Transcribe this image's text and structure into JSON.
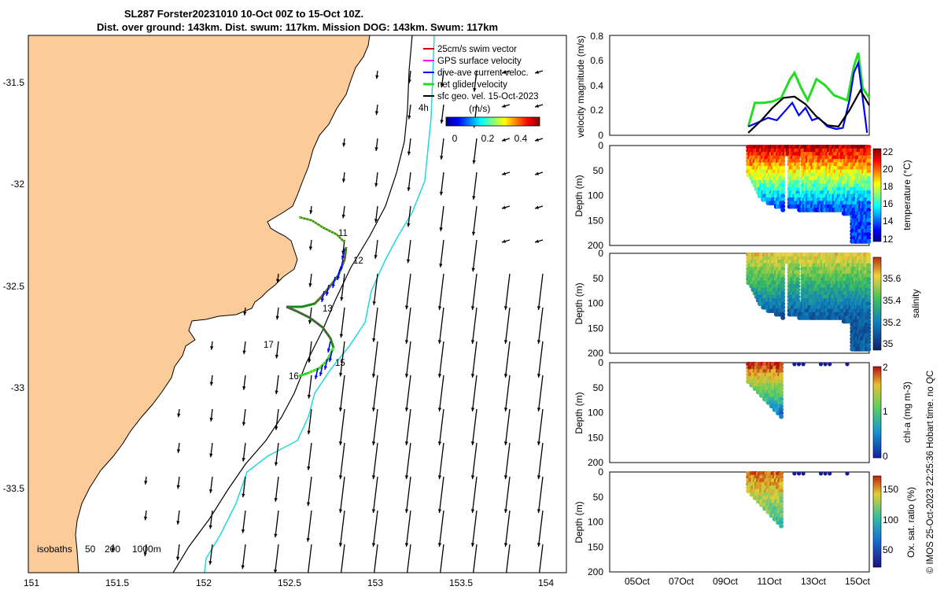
{
  "title": {
    "line1": "SL287 Forster20231010 10-Oct 00Z to 15-Oct 10Z.",
    "line2": "Dist. over ground: 143km. Dist. swum: 117km. Mission DOG: 143km. Swum: 117km"
  },
  "map": {
    "x_ticks": [
      "151",
      "151.5",
      "152",
      "152.5",
      "153",
      "153.5",
      "154"
    ],
    "y_ticks": [
      "-31.5",
      "-32",
      "-32.5",
      "-33",
      "-33.5"
    ],
    "legend": [
      {
        "label": "25cm/s swim vector",
        "color": "#d40000"
      },
      {
        "label": "GPS surface velocity",
        "color": "#ff00ff"
      },
      {
        "label": "dive-ave current veloc.",
        "color": "#0000ff"
      },
      {
        "label": "net glider velocity",
        "color": "#22dd22"
      },
      {
        "label": "sfc geo. vel. 15-Oct-2023",
        "color": "#000000"
      }
    ],
    "colorbar": {
      "unit": "(m/s)",
      "ticks": [
        "0",
        "0.2",
        "0.4"
      ],
      "age_label": "4h"
    },
    "isobaths_label": "isobaths",
    "isobaths": [
      "50",
      "200",
      "1000m"
    ],
    "day_labels": [
      "11",
      "12",
      "13",
      "15",
      "16",
      "17"
    ]
  },
  "panels": {
    "x_ticks": [
      "05Oct",
      "07Oct",
      "09Oct",
      "11Oct",
      "13Oct",
      "15Oct"
    ],
    "velocity": {
      "ylabel": "velocity magnitude (m/s)",
      "yticks": [
        "0",
        "0.2",
        "0.4",
        "0.6",
        "0.8"
      ]
    },
    "depth_ylabel": "Depth (m)",
    "depth_ticks": [
      "0",
      "50",
      "100",
      "150",
      "200"
    ],
    "temperature": {
      "label": "temperature (°C)",
      "ticks": [
        "12",
        "14",
        "16",
        "18",
        "20",
        "22"
      ]
    },
    "salinity": {
      "label": "salinity",
      "ticks": [
        "35",
        "35.2",
        "35.4",
        "35.6"
      ]
    },
    "chla": {
      "label": "chl-a (mg m-3)",
      "ticks": [
        "0",
        "1",
        "2"
      ]
    },
    "oxygen": {
      "label": "Ox. sat. ratio (%)",
      "ticks": [
        "50",
        "100",
        "150"
      ]
    }
  },
  "footer": "© IMOS 25-Oct-2023 22:25:36 Hobart time. no QC",
  "chart_data": [
    {
      "type": "line",
      "title": "SL287 Forster20231010 10-Oct 00Z to 15-Oct 10Z.",
      "xlabel": "",
      "ylabel": "velocity magnitude (m/s)",
      "x_unit": "days of October 2023",
      "xlim": [
        3.6,
        15.4
      ],
      "ylim": [
        0,
        0.8
      ],
      "grid": false,
      "series": [
        {
          "name": "net glider velocity",
          "color": "#22dd22",
          "x": [
            9.9,
            10.2,
            10.6,
            11.0,
            11.4,
            11.8,
            12.0,
            12.3,
            12.6,
            13.0,
            13.4,
            13.8,
            14.1,
            14.4,
            14.7,
            14.9,
            15.1,
            15.4
          ],
          "y": [
            0.07,
            0.26,
            0.26,
            0.27,
            0.3,
            0.45,
            0.5,
            0.38,
            0.28,
            0.45,
            0.4,
            0.32,
            0.3,
            0.28,
            0.55,
            0.66,
            0.38,
            0.3
          ]
        },
        {
          "name": "dive-ave current veloc.",
          "color": "#0000ff",
          "x": [
            9.9,
            10.3,
            10.8,
            11.2,
            11.6,
            11.9,
            12.2,
            12.5,
            12.8,
            13.1,
            13.5,
            13.9,
            14.2,
            14.5,
            14.7,
            14.9,
            15.1,
            15.3
          ],
          "y": [
            0.07,
            0.1,
            0.14,
            0.12,
            0.2,
            0.26,
            0.16,
            0.22,
            0.12,
            0.14,
            0.07,
            0.05,
            0.06,
            0.28,
            0.5,
            0.58,
            0.3,
            0.02
          ]
        },
        {
          "name": "sfc geo. vel. 15-Oct-2023",
          "color": "#000000",
          "x": [
            9.9,
            10.5,
            11.0,
            11.5,
            12.0,
            12.5,
            13.0,
            13.5,
            14.0,
            14.5,
            15.0,
            15.4
          ],
          "y": [
            0.02,
            0.12,
            0.22,
            0.3,
            0.31,
            0.25,
            0.15,
            0.08,
            0.07,
            0.2,
            0.36,
            0.24
          ]
        }
      ]
    },
    {
      "type": "scatter",
      "xlabel": "",
      "ylabel": "Depth (m)",
      "ylim": [
        200,
        0
      ],
      "colorbar": {
        "label": "temperature (°C)",
        "range": [
          12,
          22
        ]
      },
      "profiles": [
        {
          "x_start": 9.9,
          "x_end": 15.4,
          "surface_value": 21.5,
          "bottom_value": 14.0
        }
      ]
    },
    {
      "type": "scatter",
      "xlabel": "",
      "ylabel": "Depth (m)",
      "ylim": [
        200,
        0
      ],
      "colorbar": {
        "label": "salinity",
        "range": [
          34.9,
          35.7
        ]
      },
      "profiles": [
        {
          "x_start": 9.9,
          "x_end": 15.4,
          "surface_value": 35.55,
          "bottom_value": 35.05
        }
      ]
    },
    {
      "type": "scatter",
      "xlabel": "",
      "ylabel": "Depth (m)",
      "ylim": [
        200,
        0
      ],
      "colorbar": {
        "label": "chl-a (mg m-3)",
        "range": [
          0,
          2
        ]
      },
      "profiles": [
        {
          "x_start": 9.9,
          "x_end": 11.4,
          "surface_value": 2.0,
          "bottom_value": 0.1
        }
      ]
    },
    {
      "type": "scatter",
      "xlabel": "",
      "ylabel": "Depth (m)",
      "ylim": [
        200,
        0
      ],
      "colorbar": {
        "label": "Ox. sat. ratio (%)",
        "range": [
          20,
          170
        ]
      },
      "profiles": [
        {
          "x_start": 9.9,
          "x_end": 11.4,
          "surface_value": 160,
          "bottom_value": 90
        }
      ]
    }
  ]
}
